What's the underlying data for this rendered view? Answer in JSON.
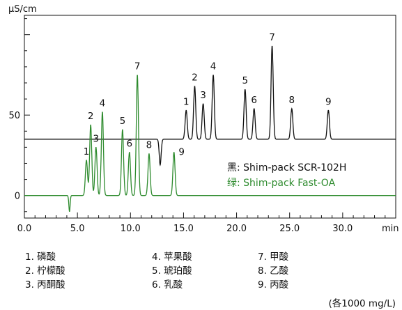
{
  "chart_data": {
    "type": "line",
    "ylabel": "µS/cm",
    "xlabel": "min",
    "xlim": [
      0,
      35
    ],
    "ylim": [
      -14,
      112
    ],
    "x_ticks": [
      0,
      5,
      10,
      15,
      20,
      25,
      30
    ],
    "x_tick_labels": [
      "0.0",
      "5.0",
      "10.0",
      "15.0",
      "20.0",
      "25.0",
      "30.0"
    ],
    "y_ticks": [
      0,
      50
    ],
    "y_tick_labels": [
      "0",
      "50"
    ],
    "legend": [
      {
        "prefix": "黑:",
        "label": "Shim-pack SCR-102H",
        "color": "#111111"
      },
      {
        "prefix": "绿:",
        "label": "Shim-pack Fast-OA",
        "color": "#2e8b2e"
      }
    ],
    "series": [
      {
        "name": "Shim-pack SCR-102H",
        "color": "#111111",
        "baseline": 35,
        "dip": {
          "x": 12.8,
          "depth": 16,
          "sigma": 0.09
        },
        "peaks": [
          {
            "label": "1",
            "x": 15.25,
            "height": 18
          },
          {
            "label": "2",
            "x": 16.05,
            "height": 33
          },
          {
            "label": "3",
            "x": 16.85,
            "height": 22
          },
          {
            "label": "4",
            "x": 17.8,
            "height": 40
          },
          {
            "label": "5",
            "x": 20.8,
            "height": 31
          },
          {
            "label": "6",
            "x": 21.65,
            "height": 19
          },
          {
            "label": "7",
            "x": 23.35,
            "height": 58
          },
          {
            "label": "8",
            "x": 25.2,
            "height": 19
          },
          {
            "label": "9",
            "x": 28.65,
            "height": 18
          }
        ]
      },
      {
        "name": "Shim-pack Fast-OA",
        "color": "#2e8b2e",
        "baseline": 0,
        "dip": {
          "x": 4.25,
          "depth": 10,
          "sigma": 0.06
        },
        "peaks": [
          {
            "label": "1",
            "x": 5.85,
            "height": 22
          },
          {
            "label": "2",
            "x": 6.25,
            "height": 44
          },
          {
            "label": "3",
            "x": 6.75,
            "height": 30
          },
          {
            "label": "4",
            "x": 7.35,
            "height": 52
          },
          {
            "label": "5",
            "x": 9.25,
            "height": 41
          },
          {
            "label": "6",
            "x": 9.9,
            "height": 27
          },
          {
            "label": "7",
            "x": 10.65,
            "height": 75
          },
          {
            "label": "8",
            "x": 11.75,
            "height": 26
          },
          {
            "label": "9",
            "x": 14.1,
            "height": 27
          }
        ]
      }
    ]
  },
  "compounds": {
    "col1": [
      "1. 磷酸",
      "2. 柠檬酸",
      "3. 丙酮酸"
    ],
    "col2": [
      "4. 苹果酸",
      "5. 琥珀酸",
      "6. 乳酸"
    ],
    "col3": [
      "7. 甲酸",
      "8. 乙酸",
      "9. 丙酸"
    ]
  },
  "concentration_note": "(各1000 mg/L)"
}
